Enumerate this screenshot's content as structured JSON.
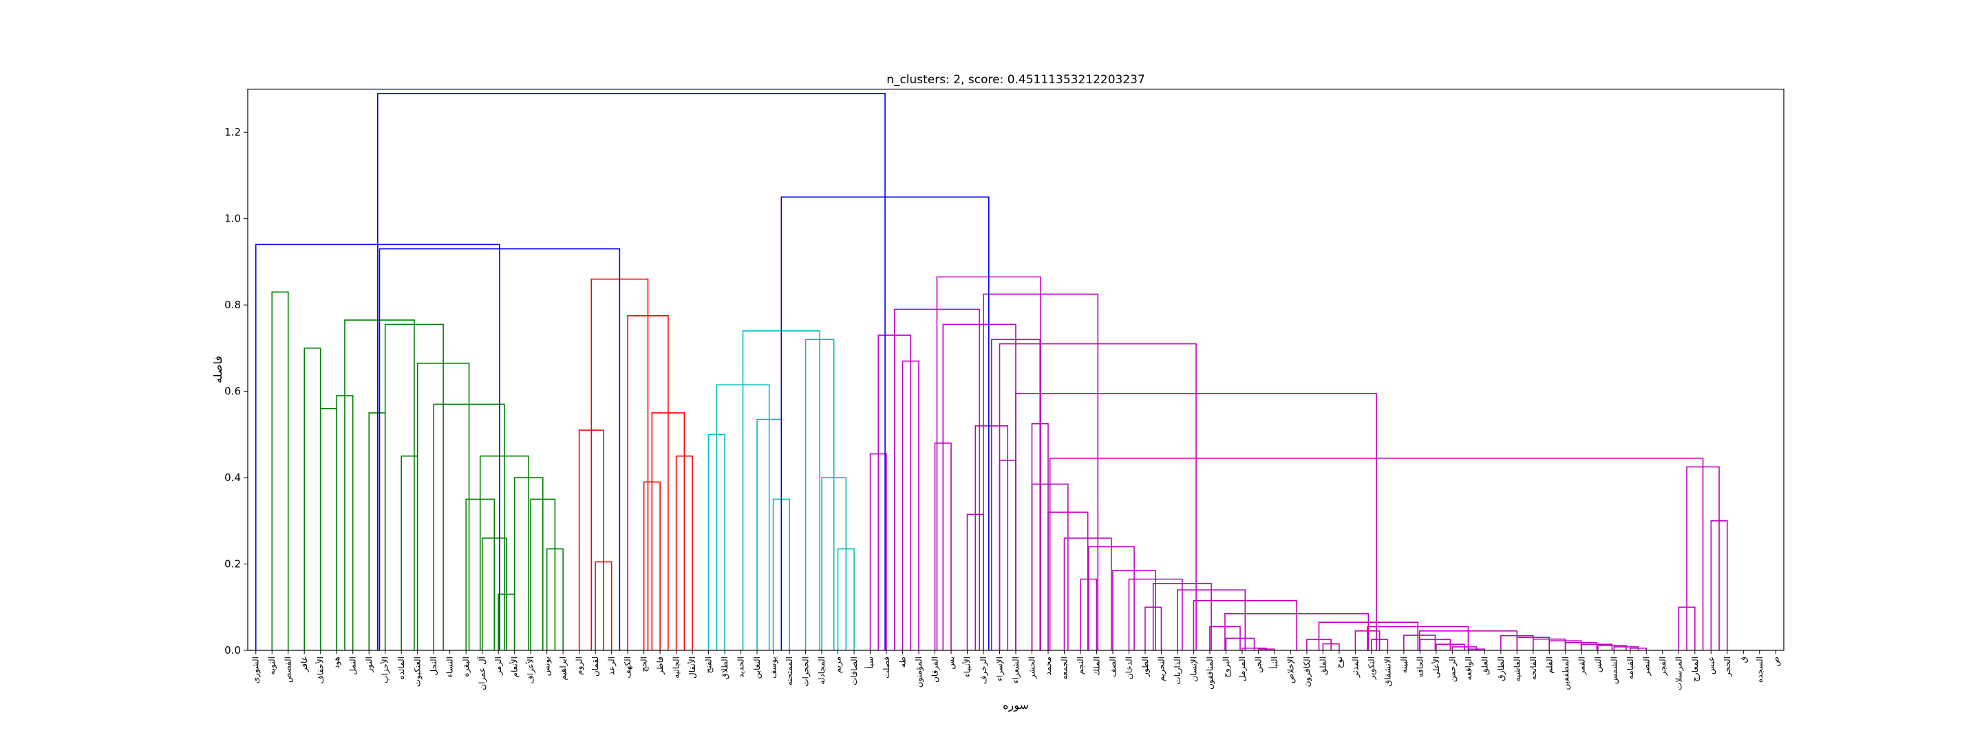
{
  "chart_data": {
    "type": "dendrogram",
    "title": "n_clusters: 2, score: 0.45111353212203237",
    "xlabel": "سوره",
    "ylabel": "فاصله",
    "ylim": [
      0,
      1.3
    ],
    "yticks": [
      "0.0",
      "0.2",
      "0.4",
      "0.6",
      "0.8",
      "1.0",
      "1.2"
    ],
    "ytick_values": [
      0,
      0.2,
      0.4,
      0.6,
      0.8,
      1.0,
      1.2
    ],
    "grid": false,
    "colors": {
      "above_threshold": "#0000ff",
      "green": "#008000",
      "red": "#ff0000",
      "cyan": "#00bfbf",
      "magenta": "#bf00bf"
    },
    "leaves": [
      "الشوری",
      "التوبه",
      "القصص",
      "غافر",
      "الأحقاف",
      "هود",
      "النمل",
      "النور",
      "الأحزاب",
      "المائده",
      "العنكبوت",
      "النحل",
      "النساء",
      "البقره",
      "آل عمران",
      "الزمر",
      "الأنعام",
      "الأعراف",
      "يونس",
      "ابراهيم",
      "الروم",
      "لقمان",
      "الرعد",
      "الكهف",
      "الحج",
      "فاطر",
      "الجاثيه",
      "الأنفال",
      "الفتح",
      "الطلاق",
      "الحديد",
      "التغابن",
      "يوسف",
      "الممتحنه",
      "الحجرات",
      "المجادله",
      "مريم",
      "الصافات",
      "سبأ",
      "فصلت",
      "طه",
      "المؤمنون",
      "الفرقان",
      "يس",
      "الأنبياء",
      "الزخرف",
      "الإسراء",
      "الشعراء",
      "الحشر",
      "محمد",
      "الجمعه",
      "النجم",
      "الملك",
      "الصف",
      "الدخان",
      "الطور",
      "التحريم",
      "الذاريات",
      "الإنسان",
      "المنافقون",
      "البروج",
      "المزمل",
      "الجن",
      "النبأ",
      "الإخلاص",
      "الكافرون",
      "الفلق",
      "نوح",
      "المدثر",
      "التكوير",
      "الانشقاق",
      "البينه",
      "الحاقه",
      "الأعلى",
      "الرحمن",
      "الواقعه",
      "العلق",
      "الطارق",
      "الغاشيه",
      "الفاتحه",
      "القلم",
      "المطففين",
      "القمر",
      "التين",
      "الشمس",
      "القيامه",
      "النصر",
      "الفجر",
      "المرسلات",
      "المعارج",
      "عبس",
      "الحجر",
      "ق",
      "السجده",
      "ص"
    ],
    "links": [
      {
        "a": 1,
        "b": 2,
        "h": 0.83,
        "c": "green"
      },
      {
        "a": 3,
        "b": 4,
        "h": 0.7,
        "c": "green"
      },
      {
        "a": 4,
        "b": 5,
        "h": 0.56,
        "c": "green"
      },
      {
        "a": 5,
        "b": 6,
        "h": 0.59,
        "c": "green"
      },
      {
        "a": 7,
        "b": 8,
        "h": 0.55,
        "c": "green"
      },
      {
        "a": 9,
        "b": 10,
        "h": 0.45,
        "c": "green"
      },
      {
        "a": 15,
        "b": 16,
        "h": 0.13,
        "c": "green"
      },
      {
        "a": 14,
        "b": 15.5,
        "h": 0.26,
        "c": "green"
      },
      {
        "a": 13,
        "b": 14.75,
        "h": 0.35,
        "c": "green"
      },
      {
        "a": 18,
        "b": 19,
        "h": 0.235,
        "c": "green"
      },
      {
        "a": 17,
        "b": 18.5,
        "h": 0.35,
        "c": "green"
      },
      {
        "a": 16,
        "b": 17.75,
        "h": 0.4,
        "c": "green"
      },
      {
        "a": 13.875,
        "b": 16.875,
        "h": 0.45,
        "c": "green"
      },
      {
        "a": 11,
        "b": 15.375,
        "h": 0.57,
        "c": "green"
      },
      {
        "a": 10,
        "b": 13.1875,
        "h": 0.665,
        "c": "green"
      },
      {
        "a": 8,
        "b": 11.5938,
        "h": 0.755,
        "c": "green"
      },
      {
        "a": 5.5,
        "b": 9.7969,
        "h": 0.765,
        "c": "green"
      },
      {
        "a": 21,
        "b": 22,
        "h": 0.205,
        "c": "red"
      },
      {
        "a": 20,
        "b": 21.5,
        "h": 0.51,
        "c": "red"
      },
      {
        "a": 24,
        "b": 25,
        "h": 0.39,
        "c": "red"
      },
      {
        "a": 26,
        "b": 27,
        "h": 0.45,
        "c": "red"
      },
      {
        "a": 24.5,
        "b": 26.5,
        "h": 0.55,
        "c": "red"
      },
      {
        "a": 23,
        "b": 25.5,
        "h": 0.775,
        "c": "red"
      },
      {
        "a": 20.75,
        "b": 24.25,
        "h": 0.86,
        "c": "red"
      },
      {
        "a": 28,
        "b": 29,
        "h": 0.5,
        "c": "cyan"
      },
      {
        "a": 32,
        "b": 33,
        "h": 0.35,
        "c": "cyan"
      },
      {
        "a": 31,
        "b": 32.5,
        "h": 0.535,
        "c": "cyan"
      },
      {
        "a": 28.5,
        "b": 31.75,
        "h": 0.615,
        "c": "cyan"
      },
      {
        "a": 36,
        "b": 37,
        "h": 0.235,
        "c": "cyan"
      },
      {
        "a": 35,
        "b": 36.5,
        "h": 0.4,
        "c": "cyan"
      },
      {
        "a": 34,
        "b": 35.75,
        "h": 0.72,
        "c": "cyan"
      },
      {
        "a": 30.125,
        "b": 34.875,
        "h": 0.74,
        "c": "cyan"
      },
      {
        "a": 38,
        "b": 39,
        "h": 0.455,
        "c": "magenta"
      },
      {
        "a": 40,
        "b": 41,
        "h": 0.67,
        "c": "magenta"
      },
      {
        "a": 38.5,
        "b": 40.5,
        "h": 0.73,
        "c": "magenta"
      },
      {
        "a": 42,
        "b": 43,
        "h": 0.48,
        "c": "magenta"
      },
      {
        "a": 44,
        "b": 45,
        "h": 0.315,
        "c": "magenta"
      },
      {
        "a": 46,
        "b": 47,
        "h": 0.44,
        "c": "magenta"
      },
      {
        "a": 44.5,
        "b": 46.5,
        "h": 0.52,
        "c": "magenta"
      },
      {
        "a": 48,
        "b": 49,
        "h": 0.525,
        "c": "magenta"
      },
      {
        "a": 45.5,
        "b": 48.5,
        "h": 0.72,
        "c": "magenta"
      },
      {
        "a": 42.5,
        "b": 47,
        "h": 0.755,
        "c": "magenta"
      },
      {
        "a": 39.5,
        "b": 44.75,
        "h": 0.79,
        "c": "magenta"
      },
      {
        "a": 85,
        "b": 86,
        "h": 0.005,
        "c": "magenta"
      },
      {
        "a": 84,
        "b": 85.5,
        "h": 0.008,
        "c": "magenta"
      },
      {
        "a": 83,
        "b": 84.75,
        "h": 0.011,
        "c": "magenta"
      },
      {
        "a": 82,
        "b": 83.875,
        "h": 0.014,
        "c": "magenta"
      },
      {
        "a": 81,
        "b": 82.9375,
        "h": 0.018,
        "c": "magenta"
      },
      {
        "a": 80,
        "b": 81.9688,
        "h": 0.022,
        "c": "magenta"
      },
      {
        "a": 79,
        "b": 80.9844,
        "h": 0.026,
        "c": "magenta"
      },
      {
        "a": 78,
        "b": 79.9922,
        "h": 0.03,
        "c": "magenta"
      },
      {
        "a": 77,
        "b": 78.9961,
        "h": 0.034,
        "c": "magenta"
      },
      {
        "a": 75,
        "b": 76,
        "h": 0.003,
        "c": "magenta"
      },
      {
        "a": 74,
        "b": 75.5,
        "h": 0.008,
        "c": "magenta"
      },
      {
        "a": 73,
        "b": 74.75,
        "h": 0.014,
        "c": "magenta"
      },
      {
        "a": 72,
        "b": 73.875,
        "h": 0.025,
        "c": "magenta"
      },
      {
        "a": 71,
        "b": 72.9375,
        "h": 0.035,
        "c": "magenta"
      },
      {
        "a": 71.9688,
        "b": 77.998,
        "h": 0.045,
        "c": "magenta"
      },
      {
        "a": 69,
        "b": 70,
        "h": 0.025,
        "c": "magenta"
      },
      {
        "a": 68,
        "b": 69.5,
        "h": 0.045,
        "c": "magenta"
      },
      {
        "a": 68.75,
        "b": 74.9834,
        "h": 0.055,
        "c": "magenta"
      },
      {
        "a": 66,
        "b": 67,
        "h": 0.015,
        "c": "magenta"
      },
      {
        "a": 65,
        "b": 66.5,
        "h": 0.025,
        "c": "magenta"
      },
      {
        "a": 65.75,
        "b": 71.8667,
        "h": 0.065,
        "c": "magenta"
      },
      {
        "a": 62,
        "b": 63,
        "h": 0.003,
        "c": "magenta"
      },
      {
        "a": 61,
        "b": 62.5,
        "h": 0.005,
        "c": "magenta"
      },
      {
        "a": 60,
        "b": 61.75,
        "h": 0.028,
        "c": "magenta"
      },
      {
        "a": 59,
        "b": 60.875,
        "h": 0.055,
        "c": "magenta"
      },
      {
        "a": 59.9375,
        "b": 68.8083,
        "h": 0.085,
        "c": "magenta"
      },
      {
        "a": 58,
        "b": 64.3729,
        "h": 0.115,
        "c": "magenta"
      },
      {
        "a": 57,
        "b": 61.1865,
        "h": 0.14,
        "c": "magenta"
      },
      {
        "a": 55,
        "b": 56,
        "h": 0.1,
        "c": "magenta"
      },
      {
        "a": 55.5,
        "b": 59.0932,
        "h": 0.155,
        "c": "magenta"
      },
      {
        "a": 54,
        "b": 57.2966,
        "h": 0.165,
        "c": "magenta"
      },
      {
        "a": 53,
        "b": 55.6483,
        "h": 0.185,
        "c": "magenta"
      },
      {
        "a": 51,
        "b": 52,
        "h": 0.165,
        "c": "magenta"
      },
      {
        "a": 51.5,
        "b": 54.3241,
        "h": 0.24,
        "c": "magenta"
      },
      {
        "a": 50,
        "b": 52.9121,
        "h": 0.26,
        "c": "magenta"
      },
      {
        "a": 49,
        "b": 51.456,
        "h": 0.32,
        "c": "magenta"
      },
      {
        "a": 48,
        "b": 50.228,
        "h": 0.385,
        "c": "magenta"
      },
      {
        "a": 88,
        "b": 89,
        "h": 0.1,
        "c": "magenta"
      },
      {
        "a": 90,
        "b": 91,
        "h": 0.3,
        "c": "magenta"
      },
      {
        "a": 88.5,
        "b": 90.5,
        "h": 0.425,
        "c": "magenta"
      },
      {
        "a": 49.114,
        "b": 89.5,
        "h": 0.445,
        "c": "magenta"
      },
      {
        "a": 47,
        "b": 69.307,
        "h": 0.595,
        "c": "magenta"
      },
      {
        "a": 46,
        "b": 58.1535,
        "h": 0.71,
        "c": "magenta"
      },
      {
        "a": 45,
        "b": 52.0768,
        "h": 0.825,
        "c": "magenta"
      },
      {
        "a": 42.125,
        "b": 48.5384,
        "h": 0.865,
        "c": "magenta"
      },
      {
        "a": 32.5,
        "b": 45.3317,
        "h": 1.05,
        "c": "above_threshold"
      },
      {
        "a": 7.6484,
        "b": 22.5,
        "h": 0.93,
        "c": "above_threshold"
      },
      {
        "a": 0,
        "b": 15.0742,
        "h": 0.94,
        "c": "above_threshold"
      },
      {
        "a": 7.5371,
        "b": 38.9159,
        "h": 1.29,
        "c": "above_threshold"
      }
    ]
  }
}
